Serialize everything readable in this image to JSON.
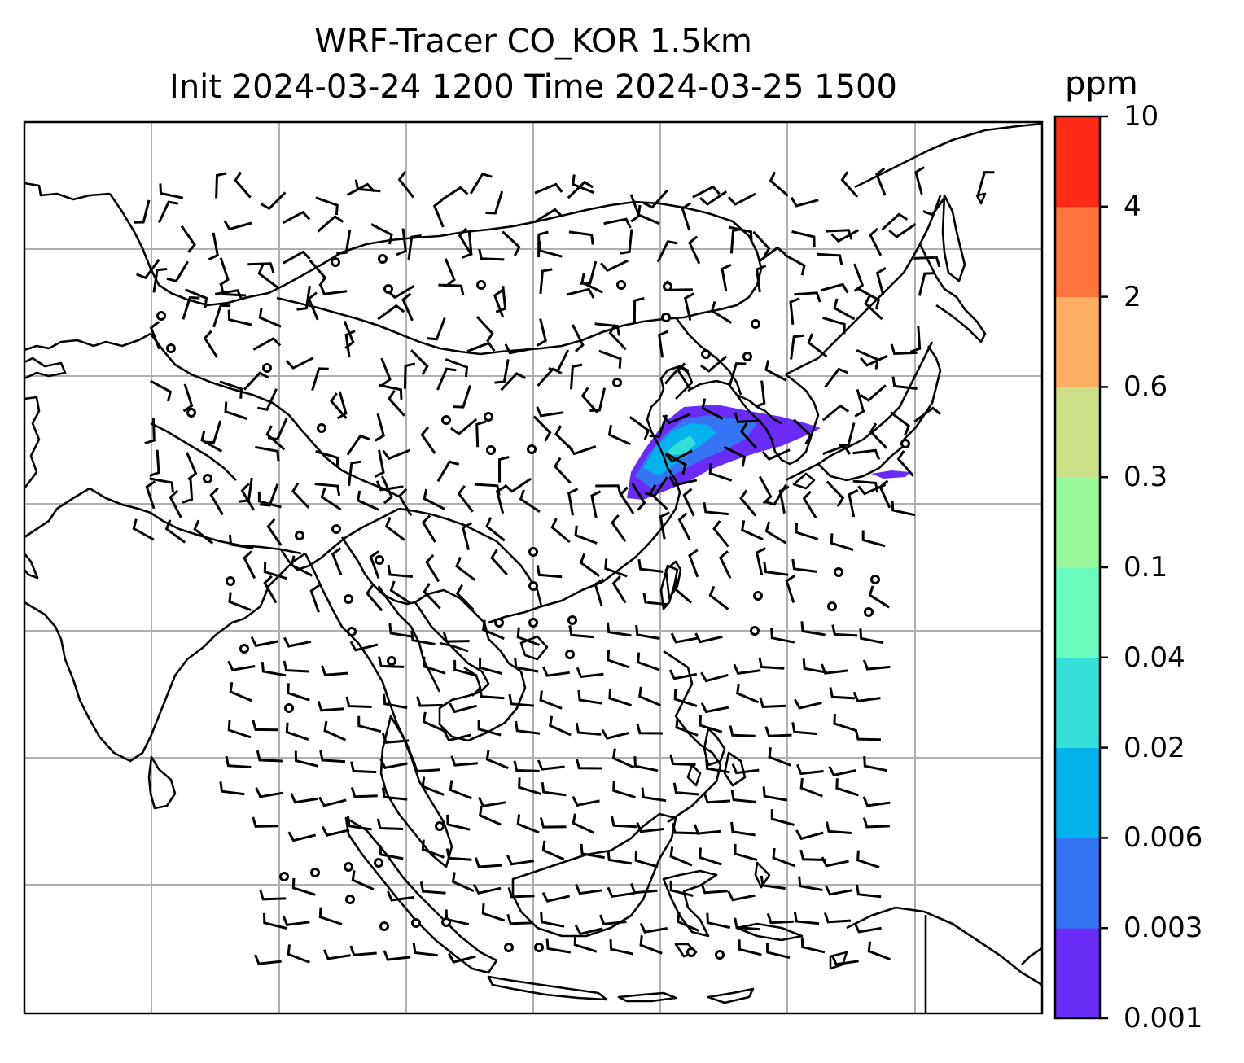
{
  "title_line1": "WRF-Tracer CO_KOR 1.5km",
  "title_line2": "Init 2024-03-24 1200 Time 2024-03-25 1500",
  "colorbar": {
    "unit": "ppm",
    "levels": [
      "0.001",
      "0.003",
      "0.006",
      "0.02",
      "0.04",
      "0.1",
      "0.3",
      "0.6",
      "2",
      "4",
      "10"
    ],
    "colors": [
      "#6a2bf7",
      "#3574f3",
      "#04b3ec",
      "#34dfd8",
      "#69fcbe",
      "#99f89c",
      "#cde087",
      "#fdae63",
      "#fd733c",
      "#fd2b17"
    ]
  },
  "map": {
    "background": "#ffffff",
    "gridline_color": "#b0b0b0",
    "coastline_color": "#000000",
    "symbols": [
      "wind-barbs",
      "calm-circles"
    ]
  }
}
